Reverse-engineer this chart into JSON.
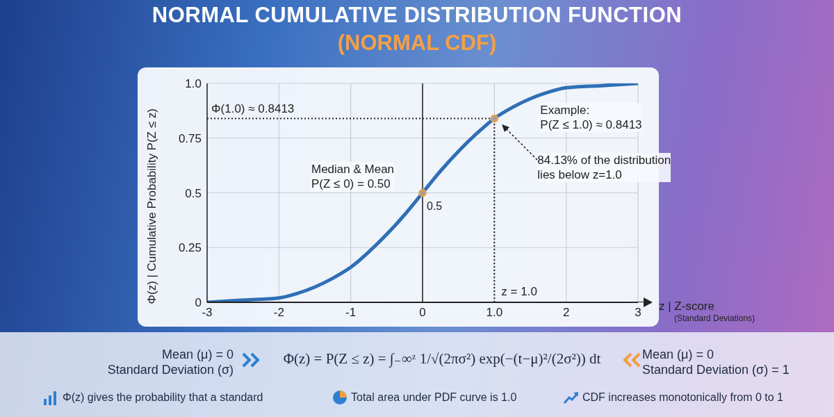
{
  "chart_data": {
    "type": "line",
    "title": "NORMAL CUMULATIVE DISTRIBUTION FUNCTION",
    "subtitle": "(NORMAL CDF)",
    "xlabel": "z | Z-score\n(Standard Deviations)",
    "ylabel": "Φ(z) | Cumulative Probability P(Z ≤ z)",
    "series": [
      {
        "color": "#2f6fb5",
        "x": [
          -3,
          -2.5,
          -2,
          -1.75,
          -1.5,
          -1.25,
          -1,
          -0.75,
          -0.5,
          -0.25,
          0,
          0.25,
          0.5,
          0.75,
          1,
          1.25,
          1.5,
          1.75,
          2,
          2.5,
          3
        ],
        "values": [
          0,
          0.01,
          0.02,
          0.04,
          0.07,
          0.11,
          0.16,
          0.23,
          0.31,
          0.4,
          0.5,
          0.6,
          0.69,
          0.77,
          0.84,
          0.89,
          0.93,
          0.96,
          0.98,
          0.99,
          1
        ]
      },
      {
        "type": "scatter",
        "color": "#f0a040",
        "marker": "circle",
        "x": [
          0,
          1
        ],
        "values": [
          0.5,
          0.84
        ],
        "value_labels": [
          "0.5",
          null
        ]
      }
    ],
    "xlim": [
      -3,
      3
    ],
    "xticks": [
      -3,
      -2,
      -1,
      0,
      {
        "value": 1,
        "label": "1.0"
      },
      2,
      3
    ],
    "ylim": [
      0,
      1
    ],
    "yticks": [
      0,
      0.25,
      0.5,
      0.75,
      {
        "value": 1,
        "label": "1.0"
      }
    ],
    "grid": true,
    "ref_lines": [
      {
        "axis": "y",
        "value": 0.84,
        "label": "Φ(1.0) ≈ 0.8413",
        "color": "#222222",
        "line_style": "dotted"
      },
      {
        "axis": "x",
        "value": 1,
        "label": "z = 1.0",
        "color": "#222222",
        "line_style": "dotted"
      },
      {
        "axis": "x",
        "value": 0,
        "color": "#222222",
        "line_style": "solid"
      }
    ],
    "annotations": [
      "Median & Mean\nP(Z ≤ 0) = 0.50",
      "Example:\nP(Z ≤ 1.0) ≈ 0.8413",
      "84.13% of the distribution\nlies below z=1.0",
      "Mean (μ) = 0\nStandard Deviation (σ)",
      "Φ(z) = P(Z ≤ z) = ∫₋∞ᶻ 1/√(2πσ²) exp(−(t−μ)²/(2σ²)) dt",
      "Mean (μ) = 0\nStandard Deviation (σ) = 1",
      "Φ(z) gives the probability that a standard",
      "Total area under PDF curve is 1.0",
      "CDF increases monotonically from 0 to 1"
    ]
  }
}
